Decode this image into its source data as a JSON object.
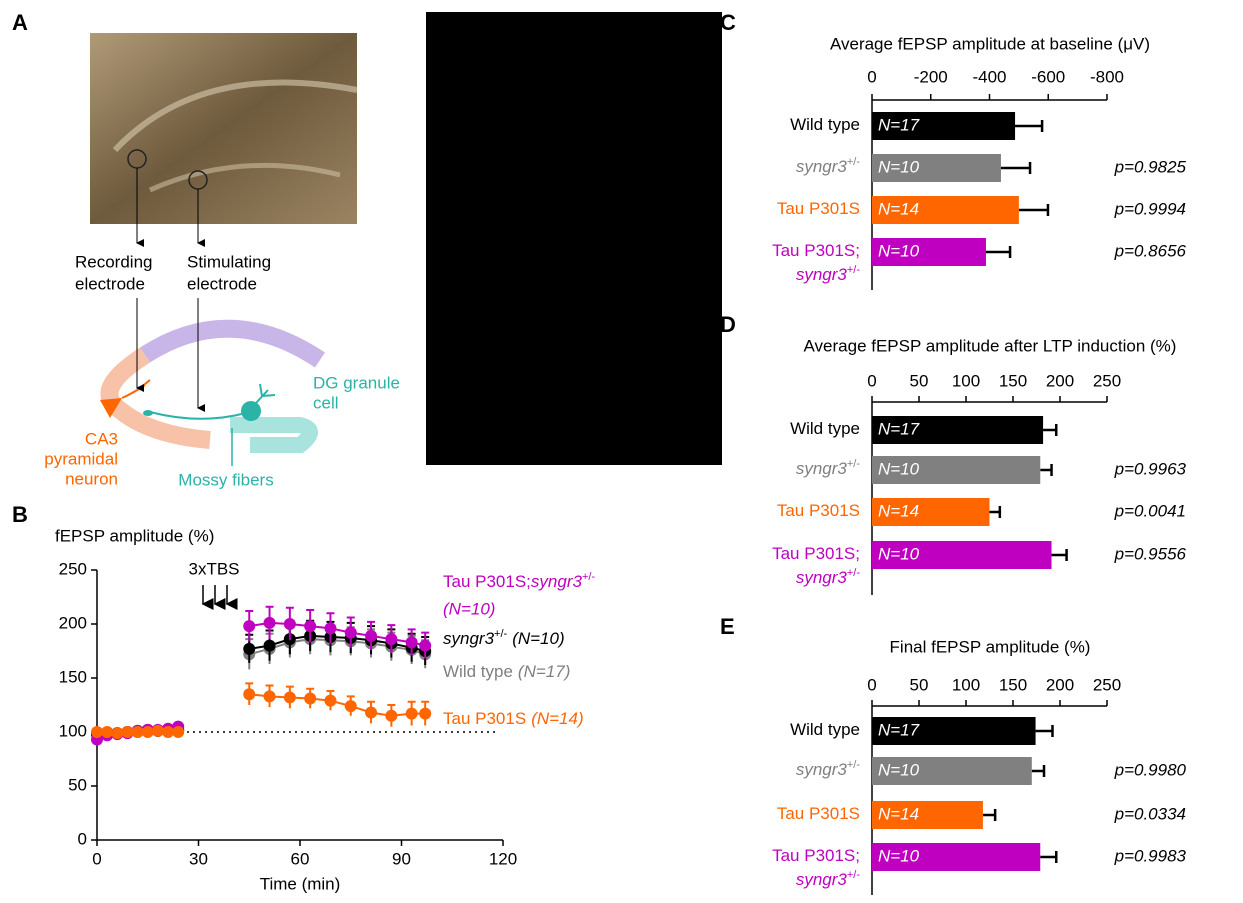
{
  "panel_labels": [
    "A",
    "B",
    "C",
    "D",
    "E"
  ],
  "diagram": {
    "recording": [
      "Recording",
      "electrode"
    ],
    "stimulating": [
      "Stimulating",
      "electrode"
    ],
    "granule": [
      "DG granule",
      "cell"
    ],
    "pyramidal": [
      "CA3",
      "pyramidal",
      "neuron"
    ],
    "mossy": "Mossy fibers"
  },
  "chart_data": [
    {
      "type": "line",
      "ylabel": "fEPSP amplitude (%)",
      "xlabel": "Time (min)",
      "annotation": "3xTBS",
      "xlim": [
        0,
        120
      ],
      "xticks": [
        0,
        30,
        60,
        90,
        120
      ],
      "ylim": [
        0,
        250
      ],
      "yticks": [
        0,
        50,
        100,
        150,
        200,
        250
      ],
      "reference_line": 100,
      "x": [
        0,
        3,
        6,
        9,
        12,
        15,
        18,
        21,
        24,
        35,
        45,
        51,
        57,
        63,
        69,
        75,
        81,
        87,
        93,
        97
      ],
      "series": [
        {
          "name": [
            {
              "text": "Tau P301S;"
            },
            {
              "text": "syngr3",
              "italic": true
            },
            {
              "text": "+/-",
              "sup": true
            }
          ],
          "n_label": "(N=10)",
          "color": "#c000c0",
          "values": [
            93,
            97,
            98,
            99,
            101,
            102,
            102,
            103,
            105,
            null,
            198,
            201,
            200,
            198,
            196,
            192,
            189,
            186,
            183,
            180
          ],
          "errors": [
            4,
            3,
            3,
            3,
            3,
            3,
            3,
            3,
            3,
            null,
            14,
            15,
            15,
            15,
            14,
            14,
            13,
            13,
            12,
            12
          ]
        },
        {
          "name": [
            {
              "text": "Wild type"
            }
          ],
          "n_label": "(N=17)",
          "color": "#808080",
          "values": [
            99,
            98,
            99,
            100,
            100,
            101,
            101,
            102,
            102,
            null,
            172,
            177,
            183,
            186,
            185,
            184,
            182,
            179,
            176,
            172
          ],
          "errors": [
            3,
            3,
            3,
            3,
            3,
            3,
            3,
            3,
            3,
            null,
            14,
            14,
            14,
            14,
            14,
            13,
            13,
            13,
            13,
            13
          ]
        },
        {
          "name": [
            {
              "text": "syngr3",
              "italic": true
            },
            {
              "text": "+/-",
              "sup": true
            }
          ],
          "n_label": "(N=10)",
          "color": "#000000",
          "values": [
            98,
            98,
            99,
            100,
            101,
            102,
            101,
            101,
            102,
            null,
            177,
            180,
            186,
            189,
            188,
            187,
            185,
            182,
            178,
            175
          ],
          "errors": [
            3,
            3,
            3,
            3,
            3,
            3,
            3,
            3,
            3,
            null,
            13,
            14,
            14,
            14,
            14,
            14,
            13,
            13,
            13,
            13
          ]
        },
        {
          "name": [
            {
              "text": "Tau P301S"
            }
          ],
          "n_label": "(N=14)",
          "color": "#ff6600",
          "values": [
            100,
            100,
            99,
            100,
            100,
            100,
            101,
            100,
            100,
            null,
            135,
            133,
            132,
            131,
            129,
            124,
            118,
            115,
            117,
            117
          ],
          "errors": [
            3,
            3,
            3,
            3,
            3,
            3,
            3,
            3,
            3,
            null,
            10,
            10,
            10,
            9,
            9,
            9,
            10,
            10,
            11,
            11
          ]
        }
      ]
    },
    {
      "type": "hbar",
      "title": "Average fEPSP amplitude at baseline (μV)",
      "xlim": [
        0,
        -800
      ],
      "xticks": [
        0,
        -200,
        -400,
        -600,
        -800
      ],
      "categories": [
        [
          [
            {
              "text": "Wild type"
            }
          ]
        ],
        [
          [
            {
              "text": "syngr3",
              "italic": true
            },
            {
              "text": "+/-",
              "sup": true
            }
          ]
        ],
        [
          [
            {
              "text": "Tau P301S"
            }
          ]
        ],
        [
          [
            {
              "text": "Tau P301S;"
            }
          ],
          [
            {
              "text": "syngr3",
              "italic": true
            },
            {
              "text": "+/-",
              "sup": true
            }
          ]
        ]
      ],
      "colors": [
        "#000000",
        "#808080",
        "#ff6600",
        "#c000c0"
      ],
      "values": [
        -487,
        -439,
        -500,
        -388
      ],
      "errors": [
        92,
        99,
        99,
        82
      ],
      "bar_labels": [
        "N=17",
        "N=10",
        "N=14",
        "N=10"
      ],
      "p_values": [
        null,
        "p=0.9825",
        "p=0.9994",
        "p=0.8656"
      ]
    },
    {
      "type": "hbar",
      "title": "Average fEPSP amplitude after LTP induction (%)",
      "xlim": [
        0,
        250
      ],
      "xticks": [
        0,
        50,
        100,
        150,
        200,
        250
      ],
      "categories": [
        [
          [
            {
              "text": "Wild type"
            }
          ]
        ],
        [
          [
            {
              "text": "syngr3",
              "italic": true
            },
            {
              "text": "+/-",
              "sup": true
            }
          ]
        ],
        [
          [
            {
              "text": "Tau P301S"
            }
          ]
        ],
        [
          [
            {
              "text": "Tau P301S;"
            }
          ],
          [
            {
              "text": "syngr3",
              "italic": true
            },
            {
              "text": "+/-",
              "sup": true
            }
          ]
        ]
      ],
      "colors": [
        "#000000",
        "#808080",
        "#ff6600",
        "#c000c0"
      ],
      "values": [
        182,
        179,
        125,
        191
      ],
      "errors": [
        14,
        12,
        11,
        16
      ],
      "bar_labels": [
        "N=17",
        "N=10",
        "N=14",
        "N=10"
      ],
      "p_values": [
        null,
        "p=0.9963",
        "p=0.0041",
        "p=0.9556"
      ]
    },
    {
      "type": "hbar",
      "title": "Final fEPSP amplitude (%)",
      "xlim": [
        0,
        250
      ],
      "xticks": [
        0,
        50,
        100,
        150,
        200,
        250
      ],
      "categories": [
        [
          [
            {
              "text": "Wild type"
            }
          ]
        ],
        [
          [
            {
              "text": "syngr3",
              "italic": true
            },
            {
              "text": "+/-",
              "sup": true
            }
          ]
        ],
        [
          [
            {
              "text": "Tau P301S"
            }
          ]
        ],
        [
          [
            {
              "text": "Tau P301S;"
            }
          ],
          [
            {
              "text": "syngr3",
              "italic": true
            },
            {
              "text": "+/-",
              "sup": true
            }
          ]
        ]
      ],
      "colors": [
        "#000000",
        "#808080",
        "#ff6600",
        "#c000c0"
      ],
      "values": [
        174,
        170,
        118,
        179
      ],
      "errors": [
        18,
        13,
        13,
        17
      ],
      "bar_labels": [
        "N=17",
        "N=10",
        "N=14",
        "N=10"
      ],
      "p_values": [
        null,
        "p=0.9980",
        "p=0.0334",
        "p=0.9983"
      ]
    }
  ]
}
